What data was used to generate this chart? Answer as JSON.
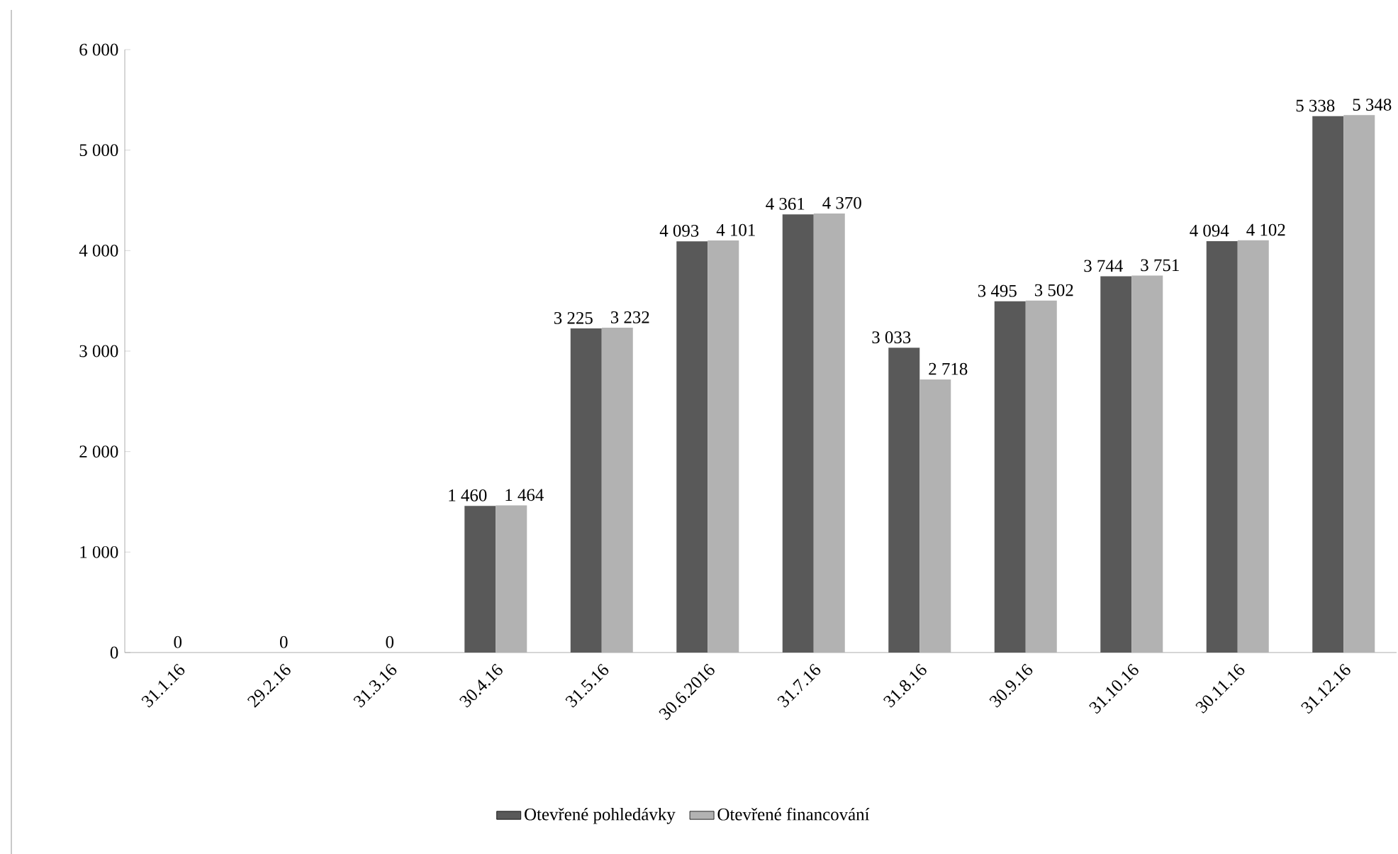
{
  "chart_data": {
    "type": "bar",
    "categories": [
      "31.1.16",
      "29.2.16",
      "31.3.16",
      "30.4.16",
      "31.5.16",
      "30.6.2016",
      "31.7.16",
      "31.8.16",
      "30.9.16",
      "31.10.16",
      "30.11.16",
      "31.12.16"
    ],
    "series": [
      {
        "name": "Otevřené pohledávky",
        "color": "#595959",
        "values": [
          0,
          0,
          0,
          1460,
          3225,
          4093,
          4361,
          3033,
          3495,
          3744,
          4094,
          5338
        ],
        "value_labels": [
          "0",
          "0",
          "0",
          "1 460",
          "3 225",
          "4 093",
          "4 361",
          "3 033",
          "3 495",
          "3 744",
          "4 094",
          "5 338"
        ]
      },
      {
        "name": "Otevřené financování",
        "color": "#b2b2b2",
        "values": [
          0,
          0,
          0,
          1464,
          3232,
          4101,
          4370,
          2718,
          3502,
          3751,
          4102,
          5348
        ],
        "value_labels": [
          null,
          null,
          null,
          "1 464",
          "3 232",
          "4 101",
          "4 370",
          "2 718",
          "3 502",
          "3 751",
          "4 102",
          "5 348"
        ]
      }
    ],
    "ylim": [
      0,
      6000
    ],
    "yticks": [
      0,
      {
        "value": 1000,
        "label": "1 000"
      },
      {
        "value": 2000,
        "label": "2 000"
      },
      {
        "value": 3000,
        "label": "3 000"
      },
      {
        "value": 4000,
        "label": "4 000"
      },
      {
        "value": 5000,
        "label": "5 000"
      },
      {
        "value": 6000,
        "label": "6 000"
      }
    ],
    "grid": false,
    "legend": "bottom"
  }
}
